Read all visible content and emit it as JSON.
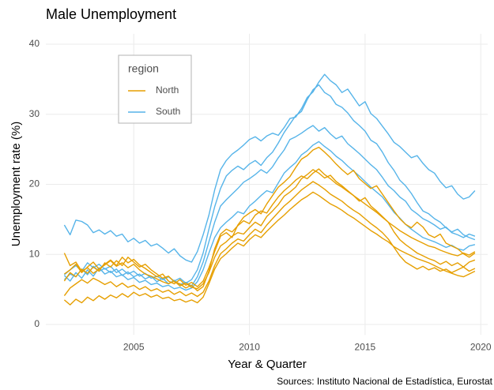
{
  "chart_data": {
    "type": "line",
    "title": "Male Unemployment",
    "xlabel": "Year & Quarter",
    "ylabel": "Unemployment rate (%)",
    "caption": "Sources: Instituto Nacional de Estadística, Eurostat",
    "legend_title": "region",
    "legend": "top-left",
    "grid": true,
    "xlim": [
      2001.2,
      2020.3
    ],
    "xticks": [
      2005,
      2010,
      2015,
      2020
    ],
    "ylim": [
      -1.5,
      41.5
    ],
    "yticks": [
      0,
      10,
      20,
      30,
      40
    ],
    "x": [
      2002,
      2002.25,
      2002.5,
      2002.75,
      2003,
      2003.25,
      2003.5,
      2003.75,
      2004,
      2004.25,
      2004.5,
      2004.75,
      2005,
      2005.25,
      2005.5,
      2005.75,
      2006,
      2006.25,
      2006.5,
      2006.75,
      2007,
      2007.25,
      2007.5,
      2007.75,
      2008,
      2008.25,
      2008.5,
      2008.75,
      2009,
      2009.25,
      2009.5,
      2009.75,
      2010,
      2010.25,
      2010.5,
      2010.75,
      2011,
      2011.25,
      2011.5,
      2011.75,
      2012,
      2012.25,
      2012.5,
      2012.75,
      2013,
      2013.25,
      2013.5,
      2013.75,
      2014,
      2014.25,
      2014.5,
      2014.75,
      2015,
      2015.25,
      2015.5,
      2015.75,
      2016,
      2016.25,
      2016.5,
      2016.75,
      2017,
      2017.25,
      2017.5,
      2017.75,
      2018,
      2018.25,
      2018.5,
      2018.75,
      2019,
      2019.25,
      2019.5,
      2019.75
    ],
    "series": [
      {
        "name": "North",
        "color": "#E69F00",
        "lines": [
          [
            10.2,
            8.4,
            8.9,
            7.6,
            8.1,
            7.3,
            7.9,
            8.6,
            9.2,
            8.4,
            9.6,
            8.8,
            9.3,
            8.5,
            8.0,
            7.4,
            6.8,
            7.2,
            6.2,
            5.8,
            6.4,
            5.6,
            6.0,
            5.4,
            6.2,
            8.1,
            10.4,
            12.6,
            13.1,
            12.4,
            14.2,
            15.3,
            15.9,
            16.4,
            15.8,
            17.2,
            18.4,
            19.6,
            20.3,
            21.1,
            22.4,
            23.6,
            24.1,
            24.9,
            25.3,
            24.6,
            23.8,
            22.9,
            22.1,
            21.4,
            22.0,
            20.8,
            20.1,
            19.4,
            19.8,
            18.6,
            17.4,
            16.2,
            15.1,
            14.3,
            13.8,
            14.6,
            13.9,
            12.8,
            12.4,
            12.9,
            11.6,
            11.2,
            10.8,
            10.1,
            9.6,
            10.2
          ],
          [
            7.2,
            7.8,
            8.6,
            7.4,
            8.2,
            8.9,
            7.9,
            8.5,
            9.1,
            8.3,
            8.8,
            8.1,
            8.6,
            7.8,
            7.2,
            6.9,
            6.5,
            6.1,
            5.8,
            6.2,
            5.5,
            5.9,
            5.3,
            5.1,
            5.8,
            7.4,
            9.6,
            11.2,
            11.8,
            12.6,
            13.1,
            12.9,
            13.8,
            14.6,
            14.1,
            15.4,
            16.2,
            17.1,
            18.3,
            18.9,
            19.6,
            20.8,
            21.4,
            22.1,
            21.6,
            20.9,
            21.3,
            20.4,
            19.8,
            19.1,
            18.4,
            17.6,
            18.1,
            16.9,
            16.2,
            15.4,
            14.6,
            13.2,
            12.1,
            11.4,
            10.8,
            10.2,
            9.8,
            9.4,
            9.1,
            8.6,
            9.0,
            8.4,
            8.8,
            8.2,
            8.9,
            9.2
          ],
          [
            4.1,
            5.2,
            5.8,
            6.4,
            5.9,
            6.6,
            6.2,
            5.7,
            6.1,
            5.4,
            5.9,
            5.3,
            5.6,
            5.0,
            5.4,
            4.8,
            5.1,
            4.6,
            4.9,
            4.3,
            4.7,
            4.1,
            4.5,
            4.0,
            4.6,
            6.2,
            8.4,
            10.1,
            10.8,
            11.6,
            12.2,
            11.9,
            12.8,
            13.6,
            13.1,
            14.2,
            15.1,
            16.0,
            16.9,
            17.6,
            18.4,
            19.2,
            19.8,
            20.4,
            19.9,
            19.3,
            18.6,
            18.1,
            17.6,
            16.9,
            16.3,
            15.8,
            15.1,
            14.4,
            13.8,
            13.1,
            12.2,
            11.0,
            9.8,
            8.9,
            8.4,
            7.9,
            8.3,
            7.8,
            8.1,
            7.6,
            7.9,
            7.4,
            7.8,
            8.2,
            7.6,
            8.0
          ],
          [
            3.5,
            2.8,
            3.6,
            3.1,
            3.9,
            3.4,
            4.1,
            3.6,
            4.2,
            3.8,
            4.4,
            3.9,
            4.6,
            4.1,
            4.4,
            3.9,
            4.2,
            3.7,
            3.9,
            3.4,
            3.6,
            3.2,
            3.5,
            3.1,
            3.9,
            5.8,
            7.9,
            9.4,
            10.1,
            10.9,
            11.6,
            11.2,
            12.1,
            12.8,
            12.4,
            13.3,
            14.1,
            14.9,
            15.6,
            16.4,
            17.1,
            17.8,
            18.3,
            18.9,
            18.4,
            17.8,
            17.2,
            16.8,
            16.3,
            15.7,
            15.2,
            14.6,
            14.0,
            13.4,
            12.9,
            12.3,
            11.8,
            11.1,
            10.6,
            10.2,
            9.8,
            9.4,
            9.1,
            8.8,
            8.4,
            8.0,
            7.6,
            7.3,
            7.0,
            6.8,
            7.2,
            7.6
          ],
          [
            6.2,
            7.4,
            6.8,
            7.9,
            7.3,
            8.2,
            7.6,
            8.8,
            8.2,
            9.1,
            8.4,
            9.6,
            8.9,
            8.2,
            8.6,
            7.8,
            7.2,
            6.6,
            6.9,
            6.1,
            5.8,
            5.2,
            5.6,
            4.8,
            5.4,
            7.6,
            10.8,
            12.9,
            13.6,
            13.2,
            14.1,
            14.8,
            14.4,
            15.6,
            16.2,
            15.9,
            17.1,
            18.2,
            19.1,
            19.8,
            20.6,
            21.2,
            20.8,
            21.6,
            22.2,
            21.4,
            20.8,
            20.1,
            19.6,
            19.0,
            18.4,
            17.8,
            17.2,
            16.6,
            16.0,
            15.3,
            14.6,
            14.0,
            13.4,
            12.9,
            12.4,
            12.0,
            11.6,
            11.2,
            11.0,
            10.6,
            10.3,
            10.0,
            9.8,
            10.2,
            9.9,
            10.4
          ]
        ]
      },
      {
        "name": "South",
        "color": "#56B4E9",
        "lines": [
          [
            14.2,
            12.8,
            14.9,
            14.7,
            14.2,
            13.1,
            13.5,
            12.9,
            13.4,
            12.6,
            12.9,
            11.8,
            12.3,
            11.6,
            12.0,
            11.2,
            11.5,
            10.9,
            10.2,
            10.8,
            9.8,
            9.2,
            8.9,
            10.4,
            12.8,
            15.6,
            19.2,
            22.1,
            23.4,
            24.3,
            24.9,
            25.6,
            26.4,
            26.8,
            26.2,
            26.9,
            27.3,
            27.0,
            28.1,
            29.4,
            29.6,
            30.8,
            32.4,
            33.2,
            34.6,
            35.7,
            34.8,
            34.2,
            33.1,
            33.6,
            32.4,
            31.2,
            31.8,
            30.1,
            29.4,
            28.3,
            27.2,
            26.0,
            25.4,
            24.6,
            23.8,
            24.1,
            23.0,
            22.1,
            21.6,
            20.4,
            19.5,
            19.8,
            18.6,
            17.9,
            18.2,
            19.1
          ],
          [
            7.1,
            7.8,
            8.4,
            7.6,
            8.8,
            8.1,
            8.6,
            7.9,
            8.3,
            7.4,
            7.9,
            7.2,
            7.6,
            6.9,
            7.3,
            6.6,
            6.9,
            6.4,
            6.8,
            6.2,
            6.6,
            5.9,
            6.4,
            7.8,
            10.2,
            13.6,
            16.8,
            19.4,
            21.2,
            22.0,
            22.6,
            22.1,
            22.9,
            23.4,
            22.7,
            23.8,
            24.6,
            25.9,
            27.4,
            28.6,
            29.8,
            30.4,
            32.1,
            33.5,
            34.2,
            33.1,
            32.6,
            31.4,
            31.0,
            30.2,
            29.1,
            28.4,
            27.6,
            26.3,
            25.8,
            24.6,
            23.1,
            22.0,
            20.6,
            19.8,
            18.7,
            17.4,
            16.2,
            15.8,
            15.1,
            14.6,
            13.8,
            13.2,
            13.6,
            12.8,
            12.4,
            12.1
          ],
          [
            6.4,
            7.2,
            6.8,
            7.9,
            7.1,
            8.3,
            7.6,
            8.0,
            7.4,
            7.9,
            7.0,
            7.5,
            6.8,
            7.2,
            6.5,
            6.9,
            6.1,
            6.6,
            5.8,
            6.3,
            5.7,
            6.0,
            5.5,
            6.8,
            8.9,
            11.8,
            14.6,
            16.9,
            17.8,
            18.6,
            19.4,
            20.3,
            20.8,
            21.4,
            22.1,
            21.6,
            22.5,
            23.8,
            24.9,
            26.4,
            26.8,
            27.3,
            27.9,
            28.4,
            27.6,
            28.1,
            27.2,
            26.5,
            26.9,
            25.8,
            25.1,
            24.4,
            23.6,
            22.8,
            22.1,
            21.0,
            19.8,
            19.1,
            18.2,
            17.6,
            16.4,
            15.8,
            15.1,
            14.7,
            14.2,
            13.6,
            13.9,
            13.1,
            12.8,
            12.4,
            12.9,
            12.6
          ],
          [
            7.0,
            6.2,
            7.4,
            6.6,
            7.8,
            6.9,
            8.1,
            7.2,
            7.6,
            6.8,
            7.1,
            6.4,
            6.7,
            6.0,
            6.3,
            5.7,
            5.9,
            5.4,
            5.6,
            5.1,
            5.3,
            4.9,
            5.2,
            6.1,
            7.8,
            10.2,
            12.4,
            13.8,
            14.6,
            15.3,
            16.1,
            15.8,
            16.9,
            17.6,
            18.4,
            19.1,
            18.8,
            20.2,
            21.6,
            22.4,
            23.1,
            24.2,
            24.8,
            25.6,
            26.1,
            25.4,
            24.8,
            24.0,
            23.4,
            22.6,
            21.9,
            21.2,
            20.4,
            19.6,
            18.9,
            18.2,
            17.1,
            16.0,
            15.2,
            14.3,
            13.6,
            13.0,
            12.4,
            12.1,
            11.8,
            11.4,
            11.0,
            11.3,
            10.8,
            10.6,
            11.2,
            11.4
          ]
        ]
      }
    ]
  }
}
